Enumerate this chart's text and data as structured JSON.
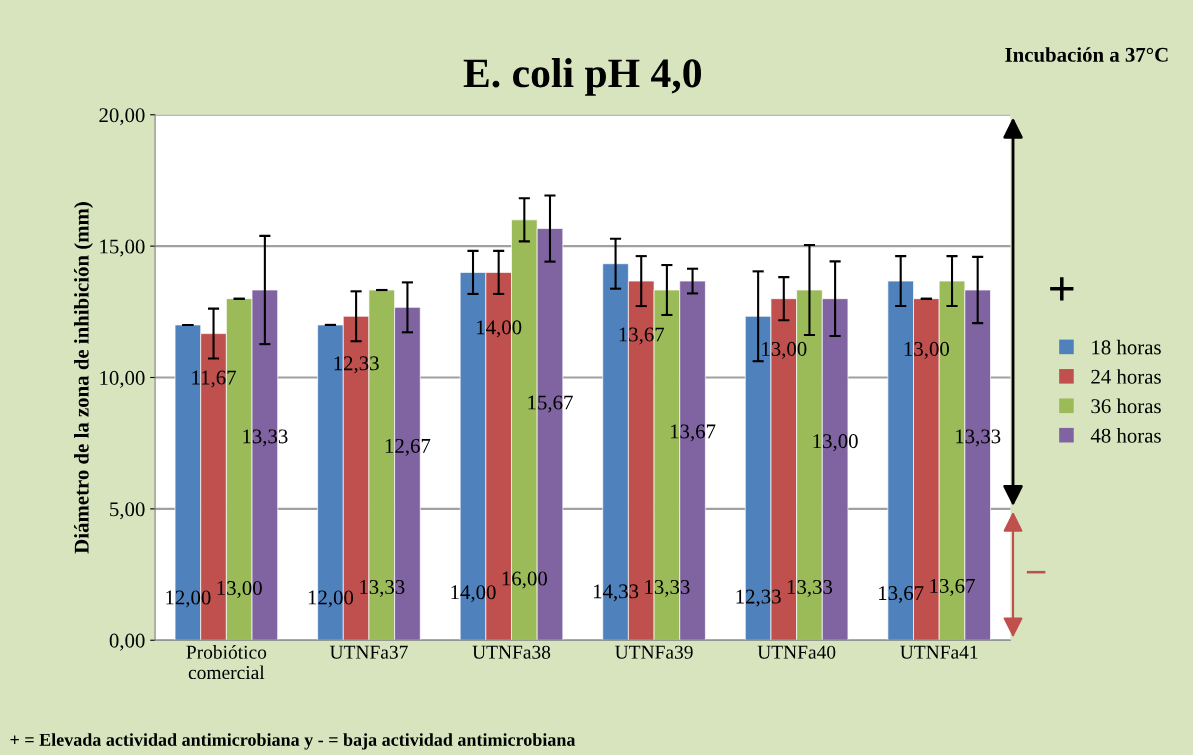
{
  "chart_data": {
    "type": "bar",
    "title": "E. coli pH 4,0",
    "ylabel": "Diámetro de la zona de inhibición (mm)",
    "categories": [
      "Probiótico\ncomercial",
      "UTNFa37",
      "UTNFa38",
      "UTNFa39",
      "UTNFa40",
      "UTNFa41"
    ],
    "series": [
      {
        "name": "18 horas",
        "color": "#4f81bd",
        "values": [
          12.0,
          12.0,
          14.0,
          14.33,
          12.33,
          13.67
        ],
        "errors": [
          0,
          0,
          0.82,
          0.95,
          1.71,
          0.95
        ],
        "value_labels": [
          "12,00",
          "12,00",
          "14,00",
          "14,33",
          "12,33",
          "13,67"
        ]
      },
      {
        "name": "24 horas",
        "color": "#c0504d",
        "values": [
          11.67,
          12.33,
          14.0,
          13.67,
          13.0,
          13.0
        ],
        "errors": [
          0.95,
          0.95,
          0.82,
          0.95,
          0.82,
          0
        ],
        "value_labels": [
          "11,67",
          "12,33",
          "14,00",
          "13,67",
          "13,00",
          "13,00"
        ]
      },
      {
        "name": "36 horas",
        "color": "#9bbb59",
        "values": [
          13.0,
          13.33,
          16.0,
          13.33,
          13.33,
          13.67
        ],
        "errors": [
          0,
          0,
          0.82,
          0.95,
          1.71,
          0.95
        ],
        "value_labels": [
          "13,00",
          "13,33",
          "16,00",
          "13,33",
          "13,33",
          "13,67"
        ]
      },
      {
        "name": "48 horas",
        "color": "#8064a2",
        "values": [
          13.33,
          12.67,
          15.67,
          13.67,
          13.0,
          13.33
        ],
        "errors": [
          2.06,
          0.95,
          1.26,
          0.47,
          1.42,
          1.26
        ],
        "value_labels": [
          "13,33",
          "12,67",
          "15,67",
          "13,67",
          "13,00",
          "13,33"
        ]
      }
    ],
    "ylim": [
      0,
      20
    ],
    "yticks": [
      {
        "value": 0,
        "label": "0,00"
      },
      {
        "value": 5,
        "label": "5,00"
      },
      {
        "value": 10,
        "label": "10,00"
      },
      {
        "value": 15,
        "label": "15,00"
      },
      {
        "value": 20,
        "label": "20,00"
      }
    ],
    "grid": "y",
    "legend": "right",
    "annotations": [
      "Incubación a 37°C",
      "+",
      "–",
      "+ = Elevada actividad antimicrobiana y - = baja actividad antimicrobiana"
    ]
  }
}
